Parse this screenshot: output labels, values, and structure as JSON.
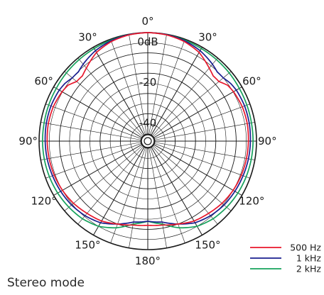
{
  "chart_data": {
    "type": "polar",
    "angle_labels": [
      {
        "deg": 0,
        "text": "0°"
      },
      {
        "deg": 30,
        "text": "30°"
      },
      {
        "deg": -30,
        "text": "30°"
      },
      {
        "deg": 60,
        "text": "60°"
      },
      {
        "deg": -60,
        "text": "60°"
      },
      {
        "deg": 90,
        "text": "90°"
      },
      {
        "deg": -90,
        "text": "90°"
      },
      {
        "deg": 120,
        "text": "120°"
      },
      {
        "deg": -120,
        "text": "120°"
      },
      {
        "deg": 150,
        "text": "150°"
      },
      {
        "deg": -150,
        "text": "150°"
      },
      {
        "deg": 180,
        "text": "180°"
      }
    ],
    "radial_labels": [
      {
        "db": 0,
        "text": "0dB"
      },
      {
        "db": -20,
        "text": "-20"
      },
      {
        "db": -40,
        "text": "-40"
      }
    ],
    "radial_range_db": [
      -50,
      0
    ],
    "radial_grid_step_db": 5,
    "angular_grid_step_deg": 10,
    "series": [
      {
        "name": "500 Hz",
        "color": "#e8172c",
        "angles": [
          0,
          10,
          20,
          30,
          40,
          45,
          50,
          55,
          60,
          70,
          80,
          90,
          100,
          110,
          120,
          130,
          140,
          150,
          160,
          170,
          180
        ],
        "db": [
          0,
          -0.3,
          -1.2,
          -3.0,
          -6.5,
          -8.0,
          -7.8,
          -5.5,
          -4.8,
          -4.0,
          -3.8,
          -4.0,
          -4.2,
          -4.5,
          -5.0,
          -5.8,
          -7.0,
          -8.0,
          -10.0,
          -11.5,
          -12.0
        ]
      },
      {
        "name": "1 kHz",
        "color": "#1a1e8f",
        "angles": [
          0,
          10,
          20,
          30,
          40,
          45,
          50,
          55,
          60,
          70,
          80,
          90,
          100,
          110,
          120,
          130,
          140,
          150,
          160,
          170,
          180
        ],
        "db": [
          0,
          -0.2,
          -0.8,
          -2.0,
          -4.0,
          -5.2,
          -5.0,
          -3.8,
          -3.2,
          -2.8,
          -2.8,
          -3.0,
          -3.2,
          -3.6,
          -4.0,
          -4.5,
          -5.5,
          -7.0,
          -10.0,
          -13.0,
          -14.0
        ]
      },
      {
        "name": "2 kHz",
        "color": "#16a25c",
        "angles": [
          0,
          10,
          20,
          30,
          40,
          50,
          60,
          70,
          80,
          90,
          100,
          110,
          120,
          130,
          140,
          150,
          160,
          170,
          180
        ],
        "db": [
          0,
          -0.2,
          -0.5,
          -0.8,
          -1.0,
          -1.2,
          -1.5,
          -1.6,
          -1.7,
          -1.7,
          -1.8,
          -2.0,
          -2.3,
          -2.8,
          -3.5,
          -5.0,
          -8.0,
          -12.0,
          -14.0
        ]
      }
    ]
  },
  "legend": [
    {
      "label": "500 Hz",
      "color": "#e8172c"
    },
    {
      "label": "1 kHz",
      "color": "#1a1e8f"
    },
    {
      "label": "2 kHz",
      "color": "#16a25c"
    }
  ],
  "caption": "Stereo mode"
}
